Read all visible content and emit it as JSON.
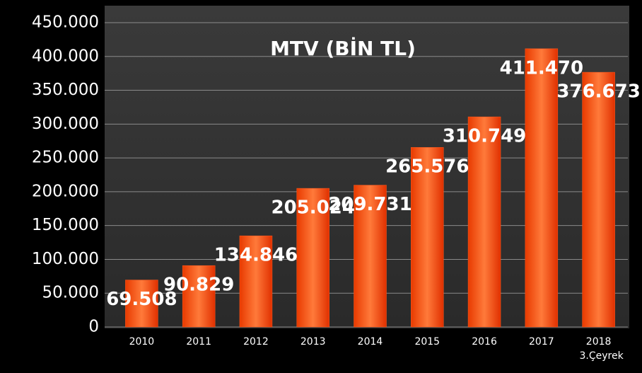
{
  "chart_data": {
    "type": "bar",
    "title": "MTV (BİN TL)",
    "categories": [
      "2010",
      "2011",
      "2012",
      "2013",
      "2014",
      "2015",
      "2016",
      "2017",
      "2018"
    ],
    "category_note": "3.Çeyrek",
    "values": [
      69508,
      90829,
      134846,
      205024,
      209731,
      265576,
      310749,
      411470,
      376673
    ],
    "value_labels": [
      "69.508",
      "90.829",
      "134.846",
      "205.024",
      "209.731",
      "265.576",
      "310.749",
      "411.470",
      "376.673"
    ],
    "color": "#ff5a1f",
    "ylim": [
      0,
      450000
    ],
    "yticks": [
      0,
      {
        "value": 50000,
        "label": "50.000"
      },
      {
        "value": 100000,
        "label": "100.000"
      },
      {
        "value": 150000,
        "label": "150.000"
      },
      {
        "value": 200000,
        "label": "200.000"
      },
      {
        "value": 250000,
        "label": "250.000"
      },
      {
        "value": 300000,
        "label": "300.000"
      },
      {
        "value": 350000,
        "label": "350.000"
      },
      {
        "value": 400000,
        "label": "400.000"
      },
      {
        "value": 450000,
        "label": "450.000"
      }
    ],
    "grid": true
  }
}
